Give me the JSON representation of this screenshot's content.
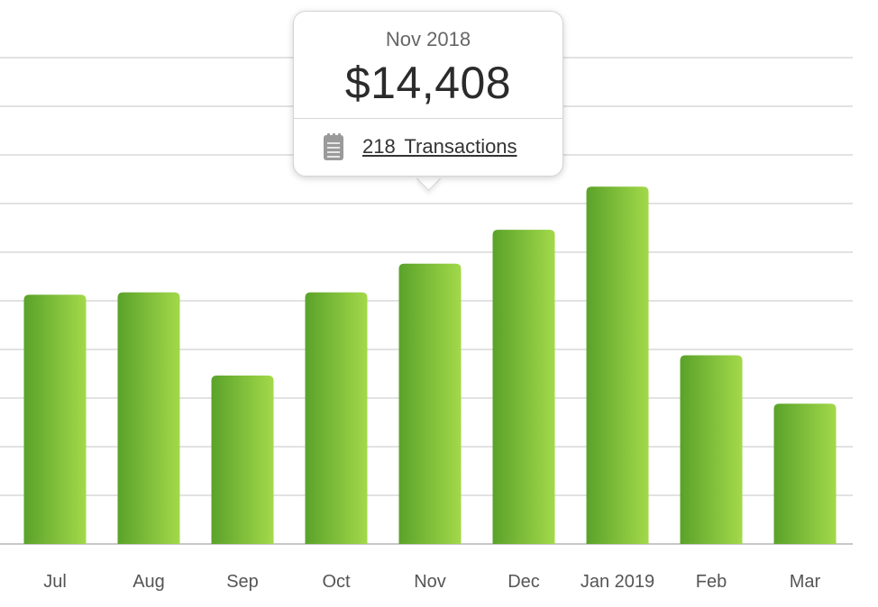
{
  "chart_data": {
    "type": "bar",
    "categories": [
      "Jul",
      "Aug",
      "Sep",
      "Oct",
      "Nov",
      "Dec",
      "Jan 2019",
      "Feb",
      "Mar"
    ],
    "values": [
      12810,
      12935,
      8655,
      12935,
      14408,
      16150,
      18370,
      9700,
      7210
    ],
    "ylim": [
      0,
      25000
    ],
    "grid": true,
    "colors": {
      "bar_dark": "#5aa22a",
      "bar_light": "#a3d94a",
      "grid": "#d9d9d9",
      "axis": "#c8c8c8"
    }
  },
  "tooltip": {
    "title": "Nov 2018",
    "amount": "$14,408",
    "transactions_label": "218  Transactions",
    "icon": "receipt-icon"
  }
}
